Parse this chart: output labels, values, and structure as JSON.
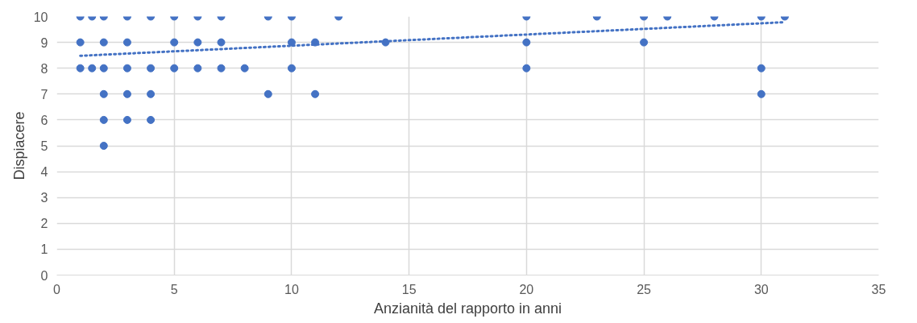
{
  "chart_data": {
    "type": "scatter",
    "xlabel": "Anzianità del rapporto in anni",
    "ylabel": "Dispiacere",
    "xlim": [
      0,
      35
    ],
    "ylim": [
      0,
      10
    ],
    "xticks": [
      0,
      5,
      10,
      15,
      20,
      25,
      30,
      35
    ],
    "yticks": [
      0,
      1,
      2,
      3,
      4,
      5,
      6,
      7,
      8,
      9,
      10
    ],
    "grid": true,
    "series": [
      {
        "marker": "circle",
        "color": "#4472c4",
        "x": [
          1,
          1.5,
          2,
          3,
          4,
          5,
          6,
          7,
          9,
          10,
          12,
          20,
          23,
          25,
          26,
          28,
          30,
          31,
          1,
          2,
          3,
          5,
          6,
          7,
          10,
          11,
          14,
          20,
          25,
          1,
          1.5,
          2,
          3,
          4,
          5,
          6,
          7,
          8,
          10,
          20,
          30,
          2,
          3,
          4,
          9,
          11,
          30,
          2,
          3,
          4,
          2
        ],
        "values": [
          10,
          10,
          10,
          10,
          10,
          10,
          10,
          10,
          10,
          10,
          10,
          10,
          10,
          10,
          10,
          10,
          10,
          10,
          9,
          9,
          9,
          9,
          9,
          9,
          9,
          9,
          9,
          9,
          9,
          8,
          8,
          8,
          8,
          8,
          8,
          8,
          8,
          8,
          8,
          8,
          8,
          7,
          7,
          7,
          7,
          7,
          7,
          6,
          6,
          6,
          5
        ]
      },
      {
        "type": "line",
        "color": "#4472c4",
        "line_style": "dotted",
        "x": [
          1,
          31
        ],
        "values": [
          8.48,
          9.78
        ]
      }
    ]
  }
}
